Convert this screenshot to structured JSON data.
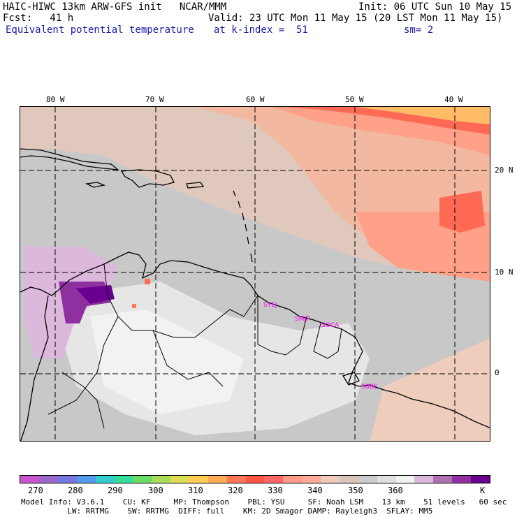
{
  "header": {
    "title": "HAIC-HIWC 13km ARW-GFS init   NCAR/MMM",
    "init": "Init: 06 UTC Sun 10 May 15",
    "fcst": "Fcst:   41 h",
    "valid": "Valid: 23 UTC Mon 11 May 15 (20 LST Mon 11 May 15)",
    "field": "Equivalent potential temperature",
    "level": "at k-index =  51",
    "smooth": "sm= 2"
  },
  "axes": {
    "lon_labels": [
      "80 W",
      "70 W",
      "60 W",
      "50 W",
      "40 W"
    ],
    "lat_labels": [
      "20 N",
      "10 N",
      "0"
    ]
  },
  "stations": [
    "SYEJ",
    "SMJP",
    "SOCA",
    "SBBE"
  ],
  "colorbar": {
    "colors": [
      "#cc55cc",
      "#9966cc",
      "#7777dd",
      "#5599ee",
      "#33cccc",
      "#33dd99",
      "#66dd66",
      "#aadd55",
      "#dddd55",
      "#ffcc55",
      "#ffaa55",
      "#ff7755",
      "#ff5544",
      "#ff6666",
      "#ff9988",
      "#ffaa99",
      "#eeccbb",
      "#d8c4bb",
      "#cccccc",
      "#e0e0e0",
      "#f2f2f2",
      "#dcb8dc",
      "#b070b0",
      "#9030a0",
      "#6a0090"
    ],
    "labels": [
      "270",
      "280",
      "290",
      "300",
      "310",
      "320",
      "330",
      "340",
      "350",
      "360",
      "K"
    ]
  },
  "info": {
    "line1": "Model Info: V3.6.1    CU: KF     MP: Thompson    PBL: YSU     SF: Noah LSM    13 km    51 levels   60 sec",
    "line2": "          LW: RRTMG    SW: RRTMG  DIFF: full    KM: 2D Smagor DAMP: Rayleigh3  SFLAY: MM5"
  }
}
